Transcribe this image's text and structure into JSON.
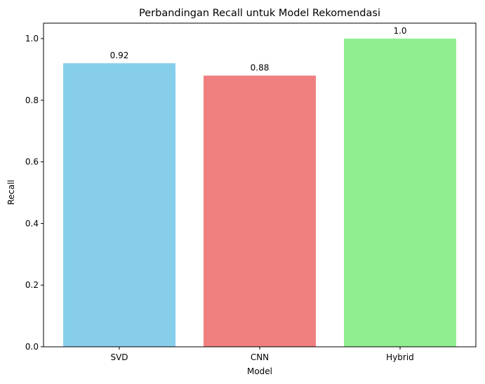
{
  "chart_data": {
    "type": "bar",
    "title": "Perbandingan Recall untuk Model Rekomendasi",
    "xlabel": "Model",
    "ylabel": "Recall",
    "categories": [
      "SVD",
      "CNN",
      "Hybrid"
    ],
    "values": [
      0.92,
      0.88,
      1.0
    ],
    "data_labels": [
      "0.92",
      "0.88",
      "1.0"
    ],
    "colors": [
      "#87ceeb",
      "#f08080",
      "#90ee90"
    ],
    "ylim": [
      0,
      1.05
    ],
    "yticks": [
      0.0,
      0.2,
      0.4,
      0.6,
      0.8,
      1.0
    ],
    "ytick_labels": [
      "0.0",
      "0.2",
      "0.4",
      "0.6",
      "0.8",
      "1.0"
    ],
    "grid": false,
    "legend": "none"
  }
}
